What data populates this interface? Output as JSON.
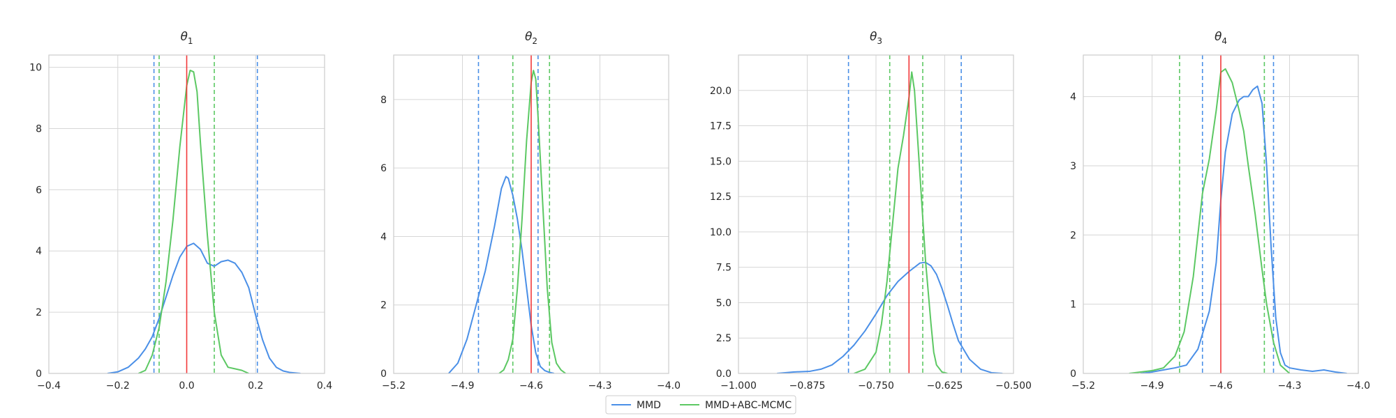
{
  "colors": {
    "mmd": "#4a8fe7",
    "abc": "#5cc863",
    "truth": "#f2383a",
    "grid": "#d6d6d6",
    "frame": "#cccccc"
  },
  "legend": {
    "placement": "bottom-center",
    "items": [
      {
        "label": "MMD",
        "color": "#4a8fe7"
      },
      {
        "label": "MMD+ABC-MCMC",
        "color": "#5cc863"
      }
    ]
  },
  "chart_data": [
    {
      "type": "line",
      "title_base": "θ",
      "title_sub": "1",
      "xlim": [
        -0.4,
        0.4
      ],
      "ylim": [
        0,
        10.4
      ],
      "xticks": [
        -0.4,
        -0.2,
        0.0,
        0.2,
        0.4
      ],
      "xtick_labels": [
        "−0.4",
        "−0.2",
        "0.0",
        "0.2",
        "0.4"
      ],
      "yticks": [
        0,
        2,
        4,
        6,
        8,
        10
      ],
      "ytick_labels": [
        "0",
        "2",
        "4",
        "6",
        "8",
        "10"
      ],
      "grid": true,
      "truth": 0.0,
      "series": [
        {
          "name": "MMD",
          "color": "#4a8fe7",
          "x": [
            -0.23,
            -0.2,
            -0.17,
            -0.14,
            -0.12,
            -0.1,
            -0.08,
            -0.06,
            -0.04,
            -0.02,
            0.0,
            0.02,
            0.04,
            0.06,
            0.08,
            0.1,
            0.12,
            0.14,
            0.16,
            0.18,
            0.2,
            0.22,
            0.24,
            0.26,
            0.28,
            0.3,
            0.33
          ],
          "y": [
            0.0,
            0.05,
            0.2,
            0.5,
            0.8,
            1.2,
            1.8,
            2.5,
            3.2,
            3.8,
            4.15,
            4.25,
            4.05,
            3.6,
            3.5,
            3.65,
            3.7,
            3.6,
            3.3,
            2.8,
            1.9,
            1.1,
            0.5,
            0.2,
            0.08,
            0.03,
            0.0
          ]
        },
        {
          "name": "MMD+ABC-MCMC",
          "color": "#5cc863",
          "x": [
            -0.14,
            -0.12,
            -0.1,
            -0.08,
            -0.06,
            -0.04,
            -0.02,
            0.0,
            0.01,
            0.02,
            0.03,
            0.04,
            0.06,
            0.08,
            0.1,
            0.12,
            0.14,
            0.16,
            0.18
          ],
          "y": [
            0.0,
            0.1,
            0.6,
            1.5,
            3.0,
            5.0,
            7.4,
            9.4,
            9.9,
            9.85,
            9.2,
            7.5,
            4.5,
            2.0,
            0.6,
            0.2,
            0.15,
            0.1,
            0.0
          ]
        }
      ],
      "intervals": [
        {
          "series": "MMD",
          "lower": -0.095,
          "upper": 0.205
        },
        {
          "series": "MMD+ABC-MCMC",
          "lower": -0.08,
          "upper": 0.08
        }
      ]
    },
    {
      "type": "line",
      "title_base": "θ",
      "title_sub": "2",
      "xlim": [
        -5.2,
        -4.0
      ],
      "ylim": [
        0,
        9.3
      ],
      "xticks": [
        -5.2,
        -4.9,
        -4.6,
        -4.3,
        -4.0
      ],
      "xtick_labels": [
        "−5.2",
        "−4.9",
        "−4.6",
        "−4.3",
        "−4.0"
      ],
      "yticks": [
        0,
        2,
        4,
        6,
        8
      ],
      "ytick_labels": [
        "0",
        "2",
        "4",
        "6",
        "8"
      ],
      "grid": true,
      "truth": -4.6,
      "series": [
        {
          "name": "MMD",
          "color": "#4a8fe7",
          "x": [
            -4.96,
            -4.92,
            -4.88,
            -4.84,
            -4.8,
            -4.76,
            -4.73,
            -4.71,
            -4.7,
            -4.68,
            -4.66,
            -4.64,
            -4.62,
            -4.6,
            -4.58,
            -4.56,
            -4.54,
            -4.52,
            -4.5
          ],
          "y": [
            0.0,
            0.3,
            1.0,
            2.0,
            3.0,
            4.3,
            5.4,
            5.75,
            5.7,
            5.2,
            4.5,
            3.6,
            2.5,
            1.4,
            0.6,
            0.2,
            0.08,
            0.03,
            0.0
          ]
        },
        {
          "name": "MMD+ABC-MCMC",
          "color": "#5cc863",
          "x": [
            -4.74,
            -4.72,
            -4.7,
            -4.68,
            -4.66,
            -4.64,
            -4.62,
            -4.6,
            -4.59,
            -4.58,
            -4.57,
            -4.55,
            -4.53,
            -4.51,
            -4.49,
            -4.47,
            -4.45
          ],
          "y": [
            0.0,
            0.1,
            0.4,
            1.0,
            2.5,
            4.5,
            6.8,
            8.5,
            8.85,
            8.6,
            7.5,
            5.0,
            2.5,
            0.9,
            0.3,
            0.1,
            0.0
          ]
        }
      ],
      "intervals": [
        {
          "series": "MMD",
          "lower": -4.83,
          "upper": -4.57
        },
        {
          "series": "MMD+ABC-MCMC",
          "lower": -4.68,
          "upper": -4.52
        }
      ]
    },
    {
      "type": "line",
      "title_base": "θ",
      "title_sub": "3",
      "xlim": [
        -1.0,
        -0.5
      ],
      "ylim": [
        0,
        22.5
      ],
      "xticks": [
        -1.0,
        -0.875,
        -0.75,
        -0.625,
        -0.5
      ],
      "xtick_labels": [
        "−1.000",
        "−0.875",
        "−0.750",
        "−0.625",
        "−0.500"
      ],
      "yticks": [
        0,
        2.5,
        5.0,
        7.5,
        10.0,
        12.5,
        15.0,
        17.5,
        20.0
      ],
      "ytick_labels": [
        "0.0",
        "2.5",
        "5.0",
        "7.5",
        "10.0",
        "12.5",
        "15.0",
        "17.5",
        "20.0"
      ],
      "grid": true,
      "truth": -0.69,
      "series": [
        {
          "name": "MMD",
          "color": "#4a8fe7",
          "x": [
            -0.93,
            -0.9,
            -0.87,
            -0.85,
            -0.83,
            -0.81,
            -0.79,
            -0.77,
            -0.75,
            -0.73,
            -0.71,
            -0.69,
            -0.67,
            -0.66,
            -0.65,
            -0.64,
            -0.63,
            -0.62,
            -0.61,
            -0.6,
            -0.58,
            -0.56,
            -0.54,
            -0.52
          ],
          "y": [
            0.0,
            0.1,
            0.15,
            0.3,
            0.6,
            1.2,
            2.0,
            3.0,
            4.2,
            5.5,
            6.5,
            7.2,
            7.8,
            7.85,
            7.6,
            7.0,
            6.0,
            4.8,
            3.5,
            2.3,
            1.0,
            0.3,
            0.05,
            0.0
          ]
        },
        {
          "name": "MMD+ABC-MCMC",
          "color": "#5cc863",
          "x": [
            -0.79,
            -0.77,
            -0.75,
            -0.74,
            -0.73,
            -0.72,
            -0.71,
            -0.7,
            -0.69,
            -0.685,
            -0.68,
            -0.67,
            -0.66,
            -0.65,
            -0.645,
            -0.64,
            -0.63,
            -0.62
          ],
          "y": [
            0.0,
            0.3,
            1.5,
            3.5,
            6.5,
            10.5,
            14.5,
            16.8,
            19.5,
            21.3,
            20.0,
            14.0,
            8.0,
            3.5,
            1.5,
            0.6,
            0.1,
            0.0
          ]
        }
      ],
      "intervals": [
        {
          "series": "MMD",
          "lower": -0.8,
          "upper": -0.595
        },
        {
          "series": "MMD+ABC-MCMC",
          "lower": -0.725,
          "upper": -0.665
        }
      ]
    },
    {
      "type": "line",
      "title_base": "θ",
      "title_sub": "4",
      "xlim": [
        -5.2,
        -4.0
      ],
      "ylim": [
        0,
        4.6
      ],
      "xticks": [
        -5.2,
        -4.9,
        -4.6,
        -4.3,
        -4.0
      ],
      "xtick_labels": [
        "−5.2",
        "−4.9",
        "−4.6",
        "−4.3",
        "−4.0"
      ],
      "yticks": [
        0,
        1,
        2,
        3,
        4
      ],
      "ytick_labels": [
        "0",
        "1",
        "2",
        "3",
        "4"
      ],
      "grid": true,
      "truth": -4.6,
      "series": [
        {
          "name": "MMD",
          "color": "#4a8fe7",
          "x": [
            -4.95,
            -4.9,
            -4.85,
            -4.8,
            -4.75,
            -4.7,
            -4.65,
            -4.62,
            -4.6,
            -4.58,
            -4.55,
            -4.52,
            -4.5,
            -4.48,
            -4.46,
            -4.44,
            -4.42,
            -4.4,
            -4.38,
            -4.36,
            -4.34,
            -4.32,
            -4.3,
            -4.25,
            -4.2,
            -4.15,
            -4.1,
            -4.05
          ],
          "y": [
            0.0,
            0.02,
            0.05,
            0.08,
            0.12,
            0.35,
            0.9,
            1.6,
            2.5,
            3.2,
            3.75,
            3.95,
            4.0,
            4.0,
            4.1,
            4.15,
            3.9,
            3.0,
            1.8,
            0.8,
            0.3,
            0.12,
            0.08,
            0.05,
            0.03,
            0.05,
            0.02,
            0.0
          ]
        },
        {
          "name": "MMD+ABC-MCMC",
          "color": "#5cc863",
          "x": [
            -5.0,
            -4.95,
            -4.9,
            -4.85,
            -4.8,
            -4.76,
            -4.72,
            -4.68,
            -4.65,
            -4.62,
            -4.6,
            -4.58,
            -4.55,
            -4.52,
            -4.5,
            -4.48,
            -4.45,
            -4.42,
            -4.4,
            -4.37,
            -4.34,
            -4.3
          ],
          "y": [
            0.0,
            0.02,
            0.04,
            0.08,
            0.25,
            0.6,
            1.4,
            2.6,
            3.1,
            3.8,
            4.35,
            4.4,
            4.2,
            3.8,
            3.5,
            3.0,
            2.3,
            1.5,
            1.0,
            0.45,
            0.12,
            0.0
          ]
        }
      ],
      "intervals": [
        {
          "series": "MMD",
          "lower": -4.68,
          "upper": -4.37
        },
        {
          "series": "MMD+ABC-MCMC",
          "lower": -4.78,
          "upper": -4.41
        }
      ]
    }
  ]
}
